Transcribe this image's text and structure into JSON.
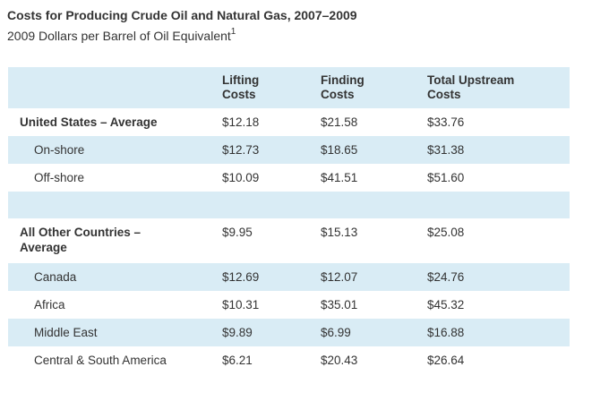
{
  "header": {
    "title": "Costs for Producing Crude Oil and Natural Gas, 2007–2009",
    "subtitle": "2009 Dollars per Barrel of Oil Equivalent",
    "footnote_marker": "1"
  },
  "colors": {
    "row_highlight": "#d9ecf5",
    "text": "#333333"
  },
  "table": {
    "headers": [
      {
        "line1": "",
        "line2": ""
      },
      {
        "line1": "Lifting",
        "line2": "Costs"
      },
      {
        "line1": "Finding",
        "line2": "Costs"
      },
      {
        "line1": "Total Upstream",
        "line2": "Costs"
      }
    ],
    "rows": [
      {
        "label": "United States – Average",
        "values": [
          "$12.18",
          "$21.58",
          "$33.76"
        ]
      },
      {
        "label": "On-shore",
        "values": [
          "$12.73",
          "$18.65",
          "$31.38"
        ]
      },
      {
        "label": "Off-shore",
        "values": [
          "$10.09",
          "$41.51",
          "$51.60"
        ]
      },
      {
        "label": "All Other Countries –",
        "label2": "Average",
        "values": [
          "$9.95",
          "$15.13",
          "$25.08"
        ]
      },
      {
        "label": "Canada",
        "values": [
          "$12.69",
          "$12.07",
          "$24.76"
        ]
      },
      {
        "label": "Africa",
        "values": [
          "$10.31",
          "$35.01",
          "$45.32"
        ]
      },
      {
        "label": "Middle East",
        "values": [
          "$9.89",
          "$6.99",
          "$16.88"
        ]
      },
      {
        "label": "Central & South America",
        "values": [
          "$6.21",
          "$20.43",
          "$26.64"
        ]
      }
    ]
  },
  "chart_data": {
    "type": "table",
    "title": "Costs for Producing Crude Oil and Natural Gas, 2007–2009",
    "subtitle": "2009 Dollars per Barrel of Oil Equivalent",
    "columns": [
      "Lifting Costs",
      "Finding Costs",
      "Total Upstream Costs"
    ],
    "rows": [
      {
        "label": "United States – Average",
        "lifting_costs": 12.18,
        "finding_costs": 21.58,
        "total_upstream_costs": 33.76
      },
      {
        "label": "On-shore",
        "lifting_costs": 12.73,
        "finding_costs": 18.65,
        "total_upstream_costs": 31.38
      },
      {
        "label": "Off-shore",
        "lifting_costs": 10.09,
        "finding_costs": 41.51,
        "total_upstream_costs": 51.6
      },
      {
        "label": "All Other Countries – Average",
        "lifting_costs": 9.95,
        "finding_costs": 15.13,
        "total_upstream_costs": 25.08
      },
      {
        "label": "Canada",
        "lifting_costs": 12.69,
        "finding_costs": 12.07,
        "total_upstream_costs": 24.76
      },
      {
        "label": "Africa",
        "lifting_costs": 10.31,
        "finding_costs": 35.01,
        "total_upstream_costs": 45.32
      },
      {
        "label": "Middle East",
        "lifting_costs": 9.89,
        "finding_costs": 6.99,
        "total_upstream_costs": 16.88
      },
      {
        "label": "Central & South America",
        "lifting_costs": 6.21,
        "finding_costs": 20.43,
        "total_upstream_costs": 26.64
      }
    ]
  }
}
